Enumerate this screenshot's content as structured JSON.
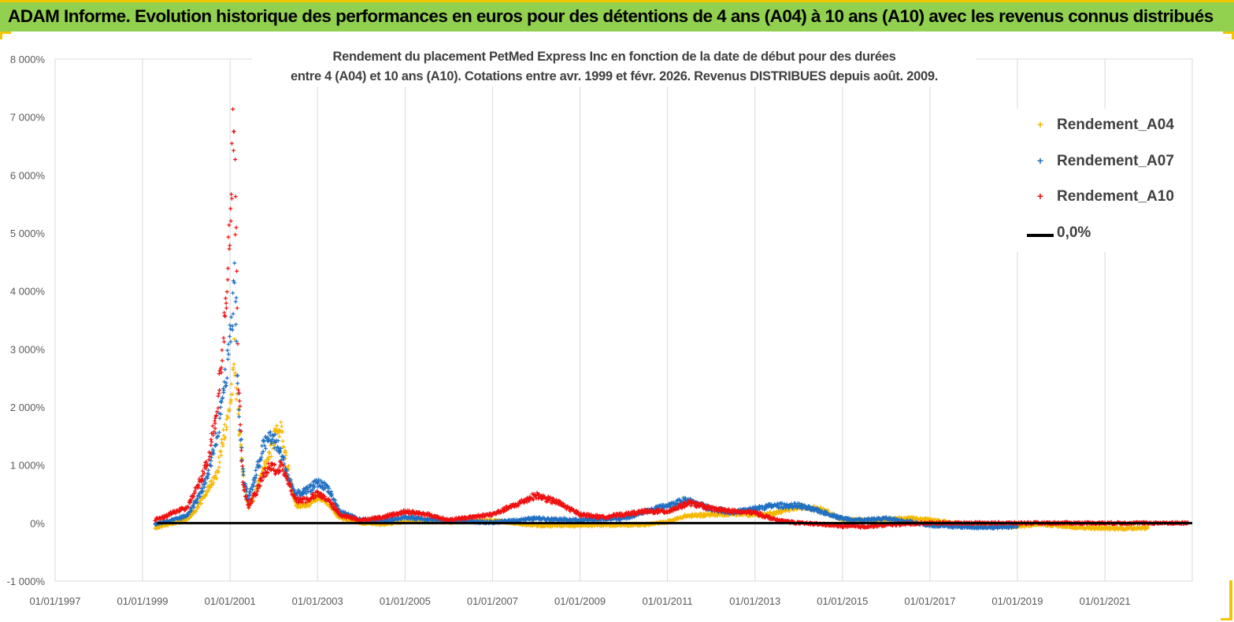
{
  "banner": {
    "title": "ADAM Informe. Evolution historique des performances en euros pour des détentions de 4 ans (A04) à 10 ans (A10) avec les revenus connus distribués"
  },
  "chart_data": {
    "type": "scatter",
    "title_lines": [
      "Rendement du placement PetMed Express Inc en fonction de la date de début pour des durées",
      "entre 4 (A04) et 10 ans (A10).  Cotations entre avr. 1999 et févr. 2026. Revenus DISTRIBUES depuis août. 2009."
    ],
    "xlabel": "",
    "ylabel": "",
    "xlim": [
      "1997-01-01",
      "2022-12-31"
    ],
    "ylim": [
      -1000,
      8000
    ],
    "x_ticks": [
      "01/01/1997",
      "01/01/1999",
      "01/01/2001",
      "01/01/2003",
      "01/01/2005",
      "01/01/2007",
      "01/01/2009",
      "01/01/2011",
      "01/01/2013",
      "01/01/2015",
      "01/01/2017",
      "01/01/2019",
      "01/01/2021"
    ],
    "y_ticks": [
      "-1 000%",
      "0%",
      "1 000%",
      "2 000%",
      "3 000%",
      "4 000%",
      "5 000%",
      "6 000%",
      "7 000%",
      "8 000%"
    ],
    "grid": "vertical",
    "legend_position": "top-right",
    "series": [
      {
        "name": "Rendement_A04",
        "color": "#f5b800",
        "marker": "+",
        "points": [
          [
            "1999-04-15",
            -80
          ],
          [
            "1999-07-01",
            -40
          ],
          [
            "1999-10-01",
            0
          ],
          [
            "2000-01-01",
            50
          ],
          [
            "2000-04-01",
            250
          ],
          [
            "2000-07-01",
            600
          ],
          [
            "2000-09-15",
            850
          ],
          [
            "2000-11-01",
            1400
          ],
          [
            "2000-12-15",
            1800
          ],
          [
            "2001-01-20",
            2400
          ],
          [
            "2001-02-10",
            2950
          ],
          [
            "2001-03-01",
            2100
          ],
          [
            "2001-04-15",
            900
          ],
          [
            "2001-06-01",
            300
          ],
          [
            "2001-08-01",
            500
          ],
          [
            "2001-10-01",
            900
          ],
          [
            "2001-12-01",
            1200
          ],
          [
            "2002-01-15",
            1550
          ],
          [
            "2002-03-01",
            1600
          ],
          [
            "2002-05-01",
            900
          ],
          [
            "2002-07-01",
            300
          ],
          [
            "2002-10-01",
            300
          ],
          [
            "2003-01-01",
            450
          ],
          [
            "2003-04-01",
            350
          ],
          [
            "2003-07-01",
            100
          ],
          [
            "2004-01-01",
            0
          ],
          [
            "2004-07-01",
            -20
          ],
          [
            "2005-01-01",
            30
          ],
          [
            "2006-01-01",
            20
          ],
          [
            "2007-01-01",
            40
          ],
          [
            "2008-01-01",
            -40
          ],
          [
            "2009-01-01",
            -40
          ],
          [
            "2010-01-01",
            -30
          ],
          [
            "2010-07-01",
            -30
          ],
          [
            "2011-01-01",
            20
          ],
          [
            "2011-06-01",
            120
          ],
          [
            "2012-01-01",
            150
          ],
          [
            "2012-07-01",
            160
          ],
          [
            "2013-01-01",
            140
          ],
          [
            "2013-06-01",
            160
          ],
          [
            "2014-01-01",
            280
          ],
          [
            "2014-07-01",
            250
          ],
          [
            "2015-01-01",
            60
          ],
          [
            "2015-07-01",
            50
          ],
          [
            "2016-01-01",
            60
          ],
          [
            "2016-07-01",
            80
          ],
          [
            "2017-01-01",
            60
          ],
          [
            "2017-07-01",
            0
          ],
          [
            "2018-01-01",
            -40
          ],
          [
            "2018-07-01",
            -50
          ],
          [
            "2019-01-01",
            -60
          ],
          [
            "2019-07-01",
            -20
          ],
          [
            "2020-01-01",
            -50
          ],
          [
            "2020-07-01",
            -80
          ],
          [
            "2021-01-01",
            -90
          ],
          [
            "2021-07-01",
            -90
          ],
          [
            "2022-01-01",
            -80
          ]
        ]
      },
      {
        "name": "Rendement_A07",
        "color": "#1f6fc2",
        "marker": "+",
        "points": [
          [
            "1999-04-15",
            -20
          ],
          [
            "1999-07-01",
            20
          ],
          [
            "1999-10-01",
            60
          ],
          [
            "2000-01-01",
            120
          ],
          [
            "2000-04-01",
            400
          ],
          [
            "2000-07-01",
            800
          ],
          [
            "2000-09-15",
            1500
          ],
          [
            "2000-11-01",
            2200
          ],
          [
            "2000-12-15",
            2800
          ],
          [
            "2001-01-20",
            3600
          ],
          [
            "2001-02-10",
            4400
          ],
          [
            "2001-03-01",
            2700
          ],
          [
            "2001-04-15",
            900
          ],
          [
            "2001-06-01",
            400
          ],
          [
            "2001-08-01",
            800
          ],
          [
            "2001-10-01",
            1300
          ],
          [
            "2001-12-01",
            1500
          ],
          [
            "2002-01-15",
            1400
          ],
          [
            "2002-03-01",
            1200
          ],
          [
            "2002-05-01",
            800
          ],
          [
            "2002-07-01",
            500
          ],
          [
            "2002-10-01",
            550
          ],
          [
            "2003-01-01",
            700
          ],
          [
            "2003-04-01",
            600
          ],
          [
            "2003-07-01",
            200
          ],
          [
            "2004-01-01",
            50
          ],
          [
            "2004-07-01",
            30
          ],
          [
            "2005-01-01",
            100
          ],
          [
            "2006-01-01",
            40
          ],
          [
            "2007-01-01",
            10
          ],
          [
            "2008-01-01",
            80
          ],
          [
            "2009-01-01",
            50
          ],
          [
            "2010-01-01",
            80
          ],
          [
            "2010-07-01",
            200
          ],
          [
            "2011-01-01",
            300
          ],
          [
            "2011-06-01",
            400
          ],
          [
            "2012-01-01",
            250
          ],
          [
            "2012-07-01",
            180
          ],
          [
            "2013-01-01",
            250
          ],
          [
            "2013-06-01",
            300
          ],
          [
            "2014-01-01",
            300
          ],
          [
            "2014-07-01",
            200
          ],
          [
            "2015-01-01",
            80
          ],
          [
            "2015-07-01",
            50
          ],
          [
            "2016-01-01",
            80
          ],
          [
            "2016-07-01",
            30
          ],
          [
            "2017-01-01",
            -40
          ],
          [
            "2017-07-01",
            -60
          ],
          [
            "2018-01-01",
            -70
          ],
          [
            "2018-07-01",
            -70
          ],
          [
            "2019-01-01",
            -60
          ]
        ]
      },
      {
        "name": "Rendement_A10",
        "color": "#ee1111",
        "marker": "+",
        "points": [
          [
            "1999-04-15",
            60
          ],
          [
            "1999-07-01",
            100
          ],
          [
            "1999-10-01",
            200
          ],
          [
            "2000-01-01",
            250
          ],
          [
            "2000-04-01",
            600
          ],
          [
            "2000-07-01",
            1100
          ],
          [
            "2000-09-15",
            2000
          ],
          [
            "2000-11-01",
            3000
          ],
          [
            "2000-12-15",
            4400
          ],
          [
            "2001-01-10",
            5500
          ],
          [
            "2001-01-25",
            6300
          ],
          [
            "2001-02-05",
            7250
          ],
          [
            "2001-02-20",
            4800
          ],
          [
            "2001-03-10",
            2500
          ],
          [
            "2001-04-15",
            700
          ],
          [
            "2001-06-01",
            300
          ],
          [
            "2001-08-01",
            500
          ],
          [
            "2001-10-01",
            800
          ],
          [
            "2001-12-01",
            1000
          ],
          [
            "2002-01-15",
            900
          ],
          [
            "2002-03-01",
            1000
          ],
          [
            "2002-05-01",
            700
          ],
          [
            "2002-07-01",
            400
          ],
          [
            "2002-10-01",
            400
          ],
          [
            "2003-01-01",
            500
          ],
          [
            "2003-04-01",
            400
          ],
          [
            "2003-07-01",
            150
          ],
          [
            "2004-01-01",
            50
          ],
          [
            "2004-07-01",
            100
          ],
          [
            "2005-01-01",
            200
          ],
          [
            "2005-07-01",
            150
          ],
          [
            "2006-01-01",
            50
          ],
          [
            "2006-07-01",
            100
          ],
          [
            "2007-01-01",
            150
          ],
          [
            "2007-07-01",
            300
          ],
          [
            "2008-01-01",
            480
          ],
          [
            "2008-07-01",
            350
          ],
          [
            "2009-01-01",
            150
          ],
          [
            "2009-07-01",
            100
          ],
          [
            "2010-01-01",
            150
          ],
          [
            "2010-07-01",
            200
          ],
          [
            "2011-01-01",
            200
          ],
          [
            "2011-07-01",
            350
          ],
          [
            "2012-01-01",
            250
          ],
          [
            "2012-07-01",
            200
          ],
          [
            "2013-01-01",
            180
          ],
          [
            "2013-07-01",
            50
          ],
          [
            "2014-01-01",
            0
          ],
          [
            "2014-07-01",
            -20
          ],
          [
            "2015-01-01",
            -50
          ],
          [
            "2015-07-01",
            -60
          ],
          [
            "2016-01-01",
            -30
          ],
          [
            "2017-01-01",
            0
          ],
          [
            "2018-01-01",
            0
          ],
          [
            "2019-01-01",
            0
          ],
          [
            "2020-01-01",
            0
          ],
          [
            "2021-01-01",
            0
          ],
          [
            "2022-01-01",
            0
          ],
          [
            "2022-12-01",
            0
          ]
        ]
      },
      {
        "name": "0,0%",
        "color": "#000000",
        "marker": "line",
        "points": [
          [
            "1999-05-01",
            0
          ],
          [
            "2022-12-31",
            0
          ]
        ]
      }
    ]
  }
}
